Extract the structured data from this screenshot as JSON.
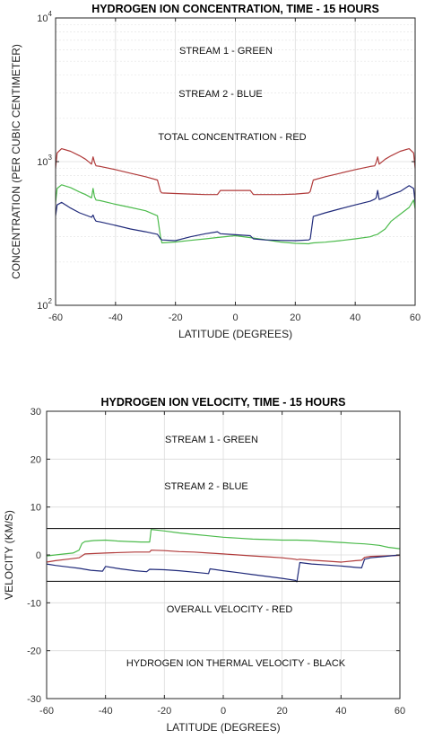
{
  "chart_data": [
    {
      "type": "line",
      "title": "HYDROGEN ION CONCENTRATION, TIME - 15 HOURS",
      "xlabel": "LATITUDE (DEGREES)",
      "ylabel": "CONCENTRATION (PER CUBIC CENTIMETER)",
      "xlim": [
        -60,
        60
      ],
      "ylim": [
        100,
        10000
      ],
      "yscale": "log",
      "grid": true,
      "x_ticks": [
        -60,
        -40,
        -20,
        0,
        20,
        40,
        60
      ],
      "x_tick_labels": [
        "-60",
        "-40",
        "-20",
        "0",
        "20",
        "40",
        "60"
      ],
      "y_ticks": [
        100,
        1000,
        10000
      ],
      "y_tick_labels": [
        {
          "base": "10",
          "exp": "2"
        },
        {
          "base": "10",
          "exp": "3"
        },
        {
          "base": "10",
          "exp": "4"
        }
      ],
      "annotations": [
        "STREAM 1 - GREEN",
        "STREAM 2 - BLUE",
        "TOTAL CONCENTRATION - RED"
      ],
      "series": [
        {
          "color": "#b03a3a",
          "x": [
            -60,
            -59.5,
            -58,
            -55,
            -52,
            -50,
            -48,
            -47.5,
            -47,
            -46.5,
            -45,
            -40,
            -35,
            -30,
            -26,
            -25,
            -24.5,
            -20,
            -15,
            -10,
            -6,
            -5,
            0,
            5,
            6,
            10,
            15,
            20,
            24.5,
            25,
            26,
            30,
            35,
            40,
            45,
            46.5,
            47,
            47.5,
            48,
            50,
            52,
            55,
            58,
            59.5,
            60
          ],
          "y": [
            900,
            1150,
            1230,
            1180,
            1100,
            1040,
            960,
            1080,
            990,
            935,
            925,
            880,
            830,
            785,
            745,
            620,
            605,
            600,
            595,
            590,
            590,
            630,
            630,
            630,
            590,
            590,
            590,
            595,
            605,
            620,
            745,
            785,
            830,
            880,
            925,
            935,
            990,
            1080,
            960,
            1040,
            1100,
            1180,
            1230,
            1150,
            900
          ]
        },
        {
          "color": "#4cbb4c",
          "x": [
            -60,
            -59.5,
            -58,
            -55,
            -52,
            -50,
            -48,
            -47.5,
            -47,
            -46.5,
            -45,
            -40,
            -35,
            -30,
            -26,
            -25,
            -24.5,
            -20,
            -15,
            -10,
            -5,
            0,
            5,
            10,
            15,
            20,
            24.5,
            25,
            26,
            30,
            35,
            40,
            45,
            46.5,
            47,
            47.5,
            48,
            50,
            52,
            55,
            58,
            59.5,
            60
          ],
          "y": [
            520,
            650,
            690,
            660,
            615,
            590,
            560,
            650,
            570,
            540,
            535,
            505,
            480,
            455,
            420,
            300,
            272,
            276,
            283,
            290,
            298,
            305,
            296,
            286,
            276,
            270,
            268,
            270,
            272,
            275,
            282,
            290,
            300,
            308,
            310,
            312,
            318,
            340,
            385,
            430,
            480,
            540,
            470
          ]
        },
        {
          "color": "#202a7a",
          "x": [
            -60,
            -59.5,
            -58,
            -55,
            -52,
            -50,
            -48,
            -47.5,
            -47,
            -46.5,
            -45,
            -40,
            -35,
            -30,
            -26,
            -25,
            -24.5,
            -20,
            -15,
            -10,
            -6,
            -5,
            0,
            5,
            6,
            10,
            15,
            20,
            24.5,
            25,
            26,
            30,
            35,
            40,
            45,
            46.5,
            47,
            47.5,
            48,
            50,
            52,
            55,
            58,
            59.5,
            60
          ],
          "y": [
            420,
            500,
            520,
            475,
            440,
            425,
            410,
            425,
            400,
            385,
            380,
            360,
            340,
            325,
            312,
            290,
            285,
            282,
            300,
            315,
            325,
            315,
            310,
            305,
            290,
            285,
            283,
            282,
            285,
            290,
            415,
            440,
            470,
            500,
            530,
            548,
            560,
            630,
            545,
            565,
            590,
            620,
            680,
            650,
            520
          ]
        }
      ]
    },
    {
      "type": "line",
      "title": "HYDROGEN ION VELOCITY, TIME - 15 HOURS",
      "xlabel": "LATITUDE (DEGREES)",
      "ylabel": "VELOCITY (KM/S)",
      "xlim": [
        -60,
        60
      ],
      "ylim": [
        -30,
        30
      ],
      "grid": true,
      "x_ticks": [
        -60,
        -40,
        -20,
        0,
        20,
        40,
        60
      ],
      "x_tick_labels": [
        "-60",
        "-40",
        "-20",
        "0",
        "20",
        "40",
        "60"
      ],
      "y_ticks": [
        -30,
        -20,
        -10,
        0,
        10,
        20,
        30
      ],
      "y_tick_labels": [
        "-30",
        "-20",
        "-10",
        "0",
        "10",
        "20",
        "30"
      ],
      "annotations": [
        "STREAM 1 - GREEN",
        "STREAM 2 - BLUE",
        "OVERALL VELOCITY - RED",
        "HYDROGEN ION THERMAL VELOCITY - BLACK"
      ],
      "reference_lines": [
        5.5,
        -5.5
      ],
      "reference_color": "#000000",
      "series": [
        {
          "color": "#4cbb4c",
          "x": [
            -60,
            -57,
            -54,
            -51,
            -49,
            -48,
            -47,
            -44,
            -40,
            -36,
            -32,
            -28,
            -25,
            -24.5,
            -20,
            -15,
            -10,
            -5,
            0,
            5,
            10,
            15,
            20,
            25,
            30,
            35,
            40,
            45,
            48,
            50,
            53,
            56,
            60
          ],
          "y": [
            -0.2,
            0.0,
            0.2,
            0.4,
            1.0,
            2.4,
            2.8,
            3.0,
            3.1,
            2.9,
            2.8,
            2.7,
            2.7,
            5.3,
            5.0,
            4.6,
            4.3,
            4.0,
            3.7,
            3.5,
            3.3,
            3.2,
            3.1,
            3.1,
            3.0,
            2.8,
            2.6,
            2.4,
            2.3,
            2.2,
            2.0,
            1.6,
            1.3
          ]
        },
        {
          "color": "#b03a3a",
          "x": [
            -60,
            -57,
            -53,
            -49,
            -48,
            -47,
            -40,
            -35,
            -30,
            -25,
            -24.5,
            -20,
            -15,
            -10,
            -5,
            0,
            5,
            10,
            15,
            20,
            24.5,
            25,
            26,
            30,
            35,
            40,
            45,
            47,
            48,
            50,
            55,
            60
          ],
          "y": [
            -1.5,
            -1.2,
            -0.9,
            -0.6,
            -0.2,
            0.2,
            0.4,
            0.5,
            0.6,
            0.6,
            1.0,
            0.9,
            0.7,
            0.6,
            0.4,
            0.2,
            0.0,
            -0.2,
            -0.4,
            -0.6,
            -0.9,
            -1.0,
            -0.9,
            -1.1,
            -1.3,
            -1.5,
            -1.2,
            -1.1,
            -0.5,
            -0.3,
            -0.2,
            -0.1
          ]
        },
        {
          "color": "#202a7a",
          "x": [
            -60,
            -57,
            -53,
            -49,
            -47,
            -45,
            -41,
            -40,
            -35,
            -30,
            -26,
            -25,
            -20,
            -15,
            -10,
            -5,
            -4.5,
            0,
            5,
            10,
            15,
            20,
            24.5,
            25,
            26,
            30,
            35,
            40,
            45,
            47,
            48,
            50,
            55,
            60
          ],
          "y": [
            -1.9,
            -2.2,
            -2.5,
            -2.8,
            -3.0,
            -3.2,
            -3.4,
            -2.4,
            -2.9,
            -3.3,
            -3.5,
            -3.0,
            -3.1,
            -3.3,
            -3.6,
            -3.9,
            -2.9,
            -3.3,
            -3.7,
            -4.1,
            -4.5,
            -4.9,
            -5.3,
            -5.6,
            -1.6,
            -1.9,
            -2.1,
            -2.3,
            -2.6,
            -2.7,
            -0.9,
            -0.6,
            -0.3,
            0.0
          ]
        }
      ]
    }
  ]
}
